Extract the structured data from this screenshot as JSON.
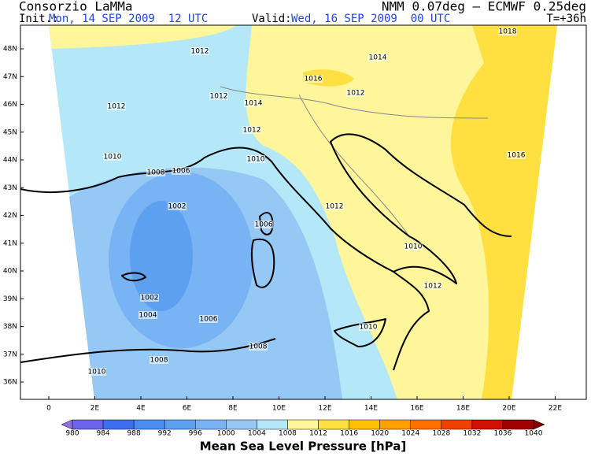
{
  "header": {
    "left_title": "Consorzio LaMMa",
    "right_title": "NMM 0.07deg – ECMWF 0.25deg",
    "init_label": "Init.:",
    "init_value": "Mon, 14 SEP 2009  12 UTC",
    "valid_label": "Valid:",
    "valid_value": "Wed, 16 SEP 2009  00 UTC",
    "lead_time": "T=+36h"
  },
  "map": {
    "lat_labels": [
      "48N",
      "47N",
      "46N",
      "45N",
      "44N",
      "43N",
      "42N",
      "41N",
      "40N",
      "39N",
      "38N",
      "37N",
      "36N"
    ],
    "lon_labels": [
      "0",
      "2E",
      "4E",
      "6E",
      "8E",
      "10E",
      "12E",
      "14E",
      "16E",
      "18E",
      "20E",
      "22E"
    ],
    "contour_labels": [
      "1012",
      "1014",
      "1016",
      "1012",
      "1012",
      "1014",
      "1012",
      "1010",
      "1008",
      "1006",
      "1010",
      "1002",
      "1006",
      "1012",
      "1010",
      "1002",
      "1004",
      "1006",
      "1010",
      "1008",
      "1008",
      "1010",
      "1012",
      "1016",
      "1018",
      "1012"
    ]
  },
  "legend": {
    "title": "Mean Sea Level Pressure [hPa]",
    "labels": [
      980,
      984,
      988,
      992,
      996,
      1000,
      1004,
      1008,
      1012,
      1016,
      1020,
      1024,
      1028,
      1032,
      1036,
      1040
    ]
  }
}
